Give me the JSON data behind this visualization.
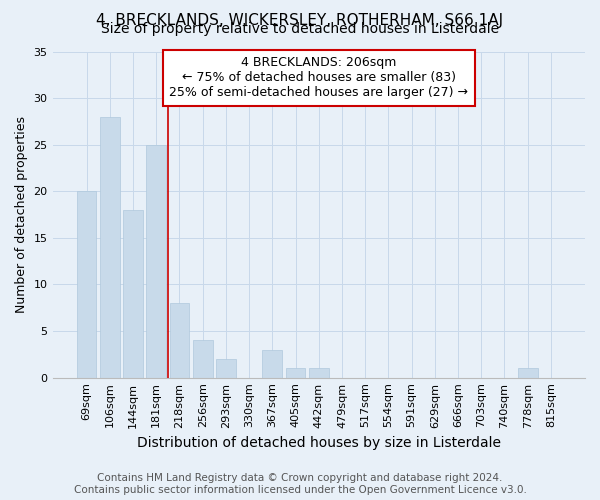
{
  "title": "4, BRECKLANDS, WICKERSLEY, ROTHERHAM, S66 1AJ",
  "subtitle": "Size of property relative to detached houses in Listerdale",
  "xlabel": "Distribution of detached houses by size in Listerdale",
  "ylabel": "Number of detached properties",
  "categories": [
    "69sqm",
    "106sqm",
    "144sqm",
    "181sqm",
    "218sqm",
    "256sqm",
    "293sqm",
    "330sqm",
    "367sqm",
    "405sqm",
    "442sqm",
    "479sqm",
    "517sqm",
    "554sqm",
    "591sqm",
    "629sqm",
    "666sqm",
    "703sqm",
    "740sqm",
    "778sqm",
    "815sqm"
  ],
  "values": [
    20,
    28,
    18,
    25,
    8,
    4,
    2,
    0,
    3,
    1,
    1,
    0,
    0,
    0,
    0,
    0,
    0,
    0,
    0,
    1,
    0
  ],
  "bar_color": "#c8daea",
  "bar_edge_color": "#afc8dc",
  "grid_color": "#c8d8ea",
  "background_color": "#e8f0f8",
  "annotation_text_lines": [
    "4 BRECKLANDS: 206sqm",
    "← 75% of detached houses are smaller (83)",
    "25% of semi-detached houses are larger (27) →"
  ],
  "annotation_box_facecolor": "#ffffff",
  "annotation_box_edgecolor": "#cc0000",
  "red_line_x": 3.5,
  "ylim": [
    0,
    35
  ],
  "yticks": [
    0,
    5,
    10,
    15,
    20,
    25,
    30,
    35
  ],
  "footer_line1": "Contains HM Land Registry data © Crown copyright and database right 2024.",
  "footer_line2": "Contains public sector information licensed under the Open Government Licence v3.0.",
  "title_fontsize": 11,
  "subtitle_fontsize": 10,
  "xlabel_fontsize": 10,
  "ylabel_fontsize": 9,
  "tick_fontsize": 8,
  "annotation_fontsize": 9,
  "footer_fontsize": 7.5
}
